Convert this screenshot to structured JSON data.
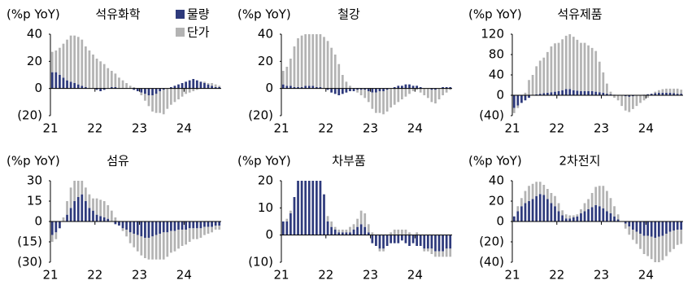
{
  "chart_data": [
    {
      "type": "bar",
      "stacked": true,
      "unit_label": "(%p YoY)",
      "title": "석유화학",
      "legend": "upper right",
      "categories": [
        "21",
        null,
        null,
        null,
        null,
        null,
        null,
        null,
        null,
        null,
        null,
        null,
        "22",
        null,
        null,
        null,
        null,
        null,
        null,
        null,
        null,
        null,
        null,
        null,
        "23",
        null,
        null,
        null,
        null,
        null,
        null,
        null,
        null,
        null,
        null,
        null,
        "24",
        null,
        null,
        null,
        null,
        null,
        null,
        null,
        null,
        null
      ],
      "ylim": [
        -20,
        40
      ],
      "yticks": [
        {
          "value": -20,
          "label": "(20)"
        },
        0,
        20,
        40
      ],
      "series": [
        {
          "name": "물량",
          "color": "#2e3a7c",
          "values": [
            12,
            12,
            10,
            8,
            6,
            5,
            4,
            3,
            2,
            1,
            0,
            0,
            -1,
            -2,
            -1,
            0,
            1,
            1,
            0,
            0,
            0,
            0,
            -1,
            -2,
            -3,
            -4,
            -5,
            -5,
            -4,
            -2,
            -1,
            0,
            1,
            2,
            3,
            4,
            5,
            6,
            7,
            6,
            5,
            4,
            3,
            2,
            1,
            1
          ]
        },
        {
          "name": "단가",
          "color": "#b3b3b3",
          "values": [
            15,
            16,
            20,
            25,
            30,
            34,
            35,
            35,
            34,
            30,
            28,
            25,
            22,
            20,
            18,
            15,
            12,
            10,
            8,
            6,
            4,
            2,
            1,
            0,
            -2,
            -5,
            -8,
            -12,
            -14,
            -16,
            -18,
            -15,
            -12,
            -10,
            -8,
            -6,
            -4,
            -3,
            -2,
            -1,
            0,
            1,
            1,
            2,
            2,
            1
          ]
        }
      ]
    },
    {
      "type": "bar",
      "stacked": true,
      "unit_label": "(%p YoY)",
      "title": "철강",
      "categories": [
        "21",
        null,
        null,
        null,
        null,
        null,
        null,
        null,
        null,
        null,
        null,
        null,
        "22",
        null,
        null,
        null,
        null,
        null,
        null,
        null,
        null,
        null,
        null,
        null,
        "23",
        null,
        null,
        null,
        null,
        null,
        null,
        null,
        null,
        null,
        null,
        null,
        "24",
        null,
        null,
        null,
        null,
        null,
        null,
        null,
        null,
        null
      ],
      "ylim": [
        -20,
        40
      ],
      "yticks": [
        {
          "value": -20,
          "label": "(20)"
        },
        0,
        20,
        40
      ],
      "series": [
        {
          "name": "물량",
          "color": "#2e3a7c",
          "values": [
            3,
            2,
            2,
            1,
            1,
            1,
            2,
            2,
            2,
            1,
            1,
            0,
            -1,
            -3,
            -4,
            -5,
            -4,
            -3,
            -2,
            -2,
            -1,
            -1,
            -1,
            -2,
            -3,
            -3,
            -2,
            -2,
            -1,
            0,
            1,
            2,
            2,
            3,
            3,
            2,
            2,
            1,
            0,
            0,
            -1,
            -1,
            0,
            1,
            1,
            1
          ]
        },
        {
          "name": "단가",
          "color": "#b3b3b3",
          "values": [
            10,
            14,
            20,
            30,
            36,
            38,
            38,
            38,
            38,
            39,
            39,
            38,
            35,
            30,
            25,
            18,
            10,
            5,
            2,
            0,
            -2,
            -4,
            -6,
            -8,
            -12,
            -15,
            -16,
            -17,
            -16,
            -14,
            -12,
            -10,
            -8,
            -6,
            -4,
            -2,
            -1,
            -3,
            -5,
            -7,
            -9,
            -10,
            -8,
            -5,
            -3,
            -1
          ]
        }
      ]
    },
    {
      "type": "bar",
      "stacked": true,
      "unit_label": "(%p YoY)",
      "title": "석유제품",
      "categories": [
        "21",
        null,
        null,
        null,
        null,
        null,
        null,
        null,
        null,
        null,
        null,
        null,
        "22",
        null,
        null,
        null,
        null,
        null,
        null,
        null,
        null,
        null,
        null,
        null,
        "23",
        null,
        null,
        null,
        null,
        null,
        null,
        null,
        null,
        null,
        null,
        null,
        "24",
        null,
        null,
        null,
        null,
        null,
        null,
        null,
        null,
        null
      ],
      "ylim": [
        -40,
        120
      ],
      "yticks": [
        {
          "value": -40,
          "label": "(40)"
        },
        0,
        40,
        80,
        120
      ],
      "series": [
        {
          "name": "물량",
          "color": "#2e3a7c",
          "values": [
            -25,
            -20,
            -15,
            -10,
            -5,
            0,
            2,
            3,
            4,
            5,
            6,
            7,
            8,
            10,
            12,
            12,
            10,
            9,
            8,
            8,
            8,
            8,
            7,
            6,
            5,
            3,
            2,
            1,
            0,
            -1,
            -2,
            -3,
            -2,
            -1,
            0,
            1,
            2,
            3,
            4,
            5,
            5,
            5,
            5,
            4,
            3,
            3
          ]
        },
        {
          "name": "단가",
          "color": "#b3b3b3",
          "values": [
            -10,
            -5,
            0,
            5,
            30,
            40,
            55,
            65,
            70,
            80,
            90,
            95,
            95,
            100,
            105,
            108,
            105,
            100,
            95,
            95,
            90,
            85,
            80,
            60,
            40,
            20,
            5,
            -5,
            -10,
            -20,
            -28,
            -30,
            -25,
            -20,
            -15,
            -10,
            -5,
            0,
            3,
            5,
            7,
            8,
            8,
            9,
            10,
            8
          ]
        }
      ]
    },
    {
      "type": "bar",
      "stacked": true,
      "unit_label": "(%p YoY)",
      "title": "섬유",
      "categories": [
        "21",
        null,
        null,
        null,
        null,
        null,
        null,
        null,
        null,
        null,
        null,
        null,
        "22",
        null,
        null,
        null,
        null,
        null,
        null,
        null,
        null,
        null,
        null,
        null,
        "23",
        null,
        null,
        null,
        null,
        null,
        null,
        null,
        null,
        null,
        null,
        null,
        "24",
        null,
        null,
        null,
        null,
        null,
        null,
        null,
        null,
        null
      ],
      "ylim": [
        -30,
        30
      ],
      "yticks": [
        {
          "value": -30,
          "label": "(30)"
        },
        {
          "value": -15,
          "label": "(15)"
        },
        0,
        15,
        30
      ],
      "series": [
        {
          "name": "물량",
          "color": "#2e3a7c",
          "values": [
            -10,
            -8,
            -5,
            0,
            5,
            10,
            15,
            18,
            20,
            15,
            10,
            8,
            5,
            4,
            3,
            2,
            0,
            -2,
            -3,
            -5,
            -6,
            -8,
            -9,
            -10,
            -11,
            -12,
            -12,
            -11,
            -10,
            -9,
            -8,
            -8,
            -7,
            -7,
            -6,
            -6,
            -6,
            -5,
            -5,
            -5,
            -5,
            -4,
            -4,
            -4,
            -3,
            -3
          ]
        },
        {
          "name": "단가",
          "color": "#b3b3b3",
          "values": [
            -5,
            -5,
            0,
            3,
            10,
            15,
            15,
            12,
            10,
            10,
            10,
            9,
            12,
            12,
            12,
            10,
            8,
            3,
            0,
            -2,
            -5,
            -8,
            -10,
            -12,
            -14,
            -15,
            -16,
            -17,
            -18,
            -19,
            -20,
            -18,
            -16,
            -15,
            -14,
            -12,
            -11,
            -10,
            -8,
            -8,
            -7,
            -6,
            -5,
            -4,
            -3,
            -3
          ]
        }
      ]
    },
    {
      "type": "bar",
      "stacked": true,
      "unit_label": "(%p YoY)",
      "title": "차부품",
      "categories": [
        "21",
        null,
        null,
        null,
        null,
        null,
        null,
        null,
        null,
        null,
        null,
        null,
        "22",
        null,
        null,
        null,
        null,
        null,
        null,
        null,
        null,
        null,
        null,
        null,
        "23",
        null,
        null,
        null,
        null,
        null,
        null,
        null,
        null,
        null,
        null,
        null,
        "24",
        null,
        null,
        null,
        null,
        null,
        null,
        null,
        null,
        null
      ],
      "ylim": [
        -10,
        20
      ],
      "yticks": [
        {
          "value": -10,
          "label": "(10)"
        },
        0,
        10,
        20
      ],
      "series": [
        {
          "name": "물량",
          "color": "#2e3a7c",
          "values": [
            5,
            5,
            8,
            14,
            20,
            20,
            20,
            20,
            20,
            20,
            20,
            15,
            5,
            3,
            2,
            1,
            1,
            1,
            1,
            2,
            3,
            4,
            3,
            1,
            -3,
            -4,
            -5,
            -5,
            -4,
            -3,
            -3,
            -3,
            -2,
            -3,
            -4,
            -3,
            -4,
            -4,
            -5,
            -5,
            -5,
            -6,
            -6,
            -6,
            -5,
            -5
          ]
        },
        {
          "name": "단가",
          "color": "#b3b3b3",
          "values": [
            0,
            1,
            1,
            0,
            0,
            0,
            0,
            0,
            0,
            0,
            0,
            0,
            2,
            2,
            1,
            1,
            1,
            1,
            2,
            2,
            3,
            5,
            5,
            3,
            1,
            0,
            -1,
            -1,
            0,
            1,
            2,
            2,
            2,
            2,
            1,
            0,
            1,
            0,
            -1,
            -1,
            -2,
            -2,
            -2,
            -2,
            -3,
            -3
          ]
        }
      ]
    },
    {
      "type": "bar",
      "stacked": true,
      "unit_label": "(%p YoY)",
      "title": "2차전지",
      "categories": [
        "21",
        null,
        null,
        null,
        null,
        null,
        null,
        null,
        null,
        null,
        null,
        null,
        "22",
        null,
        null,
        null,
        null,
        null,
        null,
        null,
        null,
        null,
        null,
        null,
        "23",
        null,
        null,
        null,
        null,
        null,
        null,
        null,
        null,
        null,
        null,
        null,
        "24",
        null,
        null,
        null,
        null,
        null,
        null,
        null,
        null,
        null
      ],
      "ylim": [
        -40,
        40
      ],
      "yticks": [
        {
          "value": -40,
          "label": "(40)"
        },
        {
          "value": -20,
          "label": "(20)"
        },
        0,
        20,
        40
      ],
      "series": [
        {
          "name": "물량",
          "color": "#2e3a7c",
          "values": [
            5,
            10,
            15,
            18,
            20,
            22,
            25,
            27,
            26,
            22,
            18,
            15,
            10,
            6,
            3,
            3,
            4,
            5,
            8,
            10,
            12,
            14,
            16,
            15,
            13,
            10,
            8,
            5,
            2,
            0,
            -2,
            -5,
            -8,
            -10,
            -12,
            -14,
            -14,
            -15,
            -16,
            -15,
            -14,
            -12,
            -10,
            -9,
            -8,
            -8
          ]
        },
        {
          "name": "단가",
          "color": "#b3b3b3",
          "values": [
            0,
            5,
            8,
            12,
            15,
            15,
            14,
            12,
            10,
            10,
            10,
            10,
            8,
            5,
            4,
            3,
            2,
            2,
            4,
            8,
            10,
            14,
            18,
            20,
            22,
            20,
            15,
            10,
            5,
            0,
            -5,
            -8,
            -10,
            -12,
            -15,
            -18,
            -20,
            -22,
            -25,
            -25,
            -24,
            -22,
            -20,
            -18,
            -15,
            -14
          ]
        }
      ]
    }
  ]
}
